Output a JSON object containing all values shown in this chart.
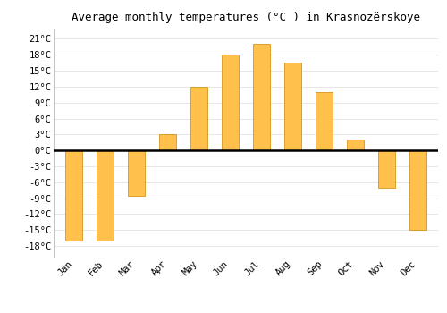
{
  "title": "Average monthly temperatures (°C ) in Krasnozërskoye",
  "months": [
    "Jan",
    "Feb",
    "Mar",
    "Apr",
    "May",
    "Jun",
    "Jul",
    "Aug",
    "Sep",
    "Oct",
    "Nov",
    "Dec"
  ],
  "values": [
    -17,
    -17,
    -8.5,
    3,
    12,
    18,
    20,
    16.5,
    11,
    2,
    -7,
    -15
  ],
  "bar_color_top": "#FFC04C",
  "bar_color_bottom": "#F5A623",
  "bar_edge_color": "#CC8800",
  "background_color": "#FFFFFF",
  "plot_bg_color": "#FFFFFF",
  "grid_color": "#DDDDDD",
  "zero_line_color": "#000000",
  "yticks": [
    -18,
    -15,
    -12,
    -9,
    -6,
    -3,
    0,
    3,
    6,
    9,
    12,
    15,
    18,
    21
  ],
  "ylim": [
    -20,
    23
  ],
  "title_fontsize": 9,
  "tick_fontsize": 7.5,
  "font_family": "monospace",
  "bar_width": 0.55
}
